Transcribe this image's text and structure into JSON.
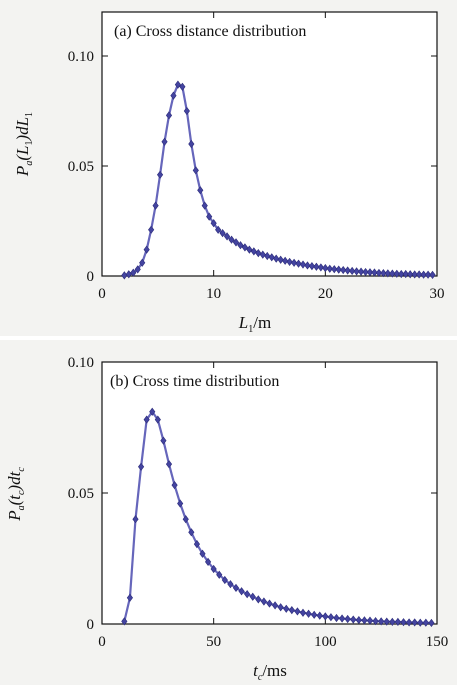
{
  "chart_data": [
    {
      "type": "line",
      "title": "(a) Cross distance distribution",
      "ylabel_parts": {
        "p": "P",
        "a": "a",
        "l": "(L",
        "one": "1",
        "r": ")dL",
        "one2": "1"
      },
      "xlabel_parts": {
        "l": "L",
        "one": "1",
        "unit": "/m"
      },
      "xlim": [
        0,
        30
      ],
      "ylim": [
        0,
        0.12
      ],
      "xticks": [
        0,
        10,
        20,
        30
      ],
      "xtick_labels": [
        "0",
        "10",
        "20",
        "30"
      ],
      "yticks": [
        0,
        0.05,
        0.1
      ],
      "ytick_labels": [
        "0",
        "0.05",
        "0.10"
      ],
      "grid": false,
      "series": [
        {
          "x": [
            2,
            2.4,
            2.8,
            3.2,
            3.6,
            4,
            4.4,
            4.8,
            5.2,
            5.6,
            6,
            6.4,
            6.8,
            7.2,
            7.6,
            8,
            8.4,
            8.8,
            9.2,
            9.6,
            10,
            10.4,
            10.8,
            11.2,
            11.6,
            12,
            12.4,
            12.8,
            13.2,
            13.6,
            14,
            14.4,
            14.8,
            15.2,
            15.6,
            16,
            16.4,
            16.8,
            17.2,
            17.6,
            18,
            18.4,
            18.8,
            19.2,
            19.6,
            20,
            20.4,
            20.8,
            21.2,
            21.6,
            22,
            22.4,
            22.8,
            23.2,
            23.6,
            24,
            24.4,
            24.8,
            25.2,
            25.6,
            26,
            26.4,
            26.8,
            27.2,
            27.6,
            28,
            28.4,
            28.8,
            29.2,
            29.6
          ],
          "y": [
            0.0003,
            0.0008,
            0.0015,
            0.003,
            0.006,
            0.012,
            0.021,
            0.032,
            0.046,
            0.061,
            0.073,
            0.082,
            0.087,
            0.086,
            0.075,
            0.06,
            0.048,
            0.039,
            0.032,
            0.027,
            0.024,
            0.021,
            0.0195,
            0.018,
            0.0165,
            0.0153,
            0.014,
            0.013,
            0.012,
            0.0112,
            0.0104,
            0.0097,
            0.0091,
            0.0085,
            0.0079,
            0.0074,
            0.0069,
            0.0064,
            0.006,
            0.0056,
            0.0052,
            0.0048,
            0.0045,
            0.0042,
            0.0039,
            0.0036,
            0.0033,
            0.0031,
            0.0029,
            0.0027,
            0.0025,
            0.0023,
            0.0021,
            0.002,
            0.0018,
            0.0017,
            0.0016,
            0.0014,
            0.0013,
            0.0012,
            0.0011,
            0.001,
            0.0009,
            0.0009,
            0.0008,
            0.0007,
            0.0007,
            0.0006,
            0.0006,
            0.0005
          ]
        }
      ]
    },
    {
      "type": "line",
      "title": "(b) Cross time distribution",
      "ylabel_parts": {
        "p": "P",
        "a": "a",
        "l": "(t",
        "c": "c",
        "r": ")dt",
        "c2": "c"
      },
      "xlabel_parts": {
        "t": "t",
        "c": "c",
        "unit": "/ms"
      },
      "xlim": [
        0,
        150
      ],
      "ylim": [
        0,
        0.1
      ],
      "xticks": [
        0,
        50,
        100,
        150
      ],
      "xtick_labels": [
        "0",
        "50",
        "100",
        "150"
      ],
      "yticks": [
        0,
        0.05,
        0.1
      ],
      "ytick_labels": [
        "0",
        "0.05",
        "0.10"
      ],
      "grid": false,
      "series": [
        {
          "x": [
            10,
            12.5,
            15,
            17.5,
            20,
            22.5,
            25,
            27.5,
            30,
            32.5,
            35,
            37.5,
            40,
            42.5,
            45,
            47.5,
            50,
            52.5,
            55,
            57.5,
            60,
            62.5,
            65,
            67.5,
            70,
            72.5,
            75,
            77.5,
            80,
            82.5,
            85,
            87.5,
            90,
            92.5,
            95,
            97.5,
            100,
            102.5,
            105,
            107.5,
            110,
            112.5,
            115,
            117.5,
            120,
            122.5,
            125,
            127.5,
            130,
            132.5,
            135,
            137.5,
            140,
            142.5,
            145,
            147.5
          ],
          "y": [
            0.001,
            0.01,
            0.04,
            0.06,
            0.078,
            0.081,
            0.078,
            0.07,
            0.061,
            0.053,
            0.046,
            0.04,
            0.035,
            0.0305,
            0.0268,
            0.0237,
            0.021,
            0.0188,
            0.0168,
            0.0152,
            0.0138,
            0.0125,
            0.0114,
            0.0104,
            0.0094,
            0.0086,
            0.0078,
            0.0071,
            0.0064,
            0.0058,
            0.0053,
            0.0048,
            0.0043,
            0.0039,
            0.0035,
            0.0032,
            0.0029,
            0.0026,
            0.0023,
            0.0021,
            0.0019,
            0.0017,
            0.0015,
            0.0014,
            0.0013,
            0.0011,
            0.001,
            0.0009,
            0.0008,
            0.0008,
            0.0007,
            0.0006,
            0.0006,
            0.0005,
            0.0005,
            0.0004
          ]
        }
      ]
    }
  ]
}
